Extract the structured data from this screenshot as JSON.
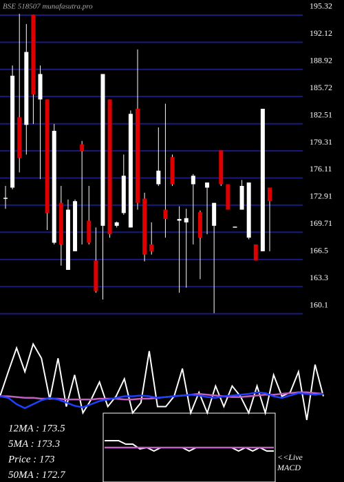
{
  "chart_data": [
    {
      "type": "candlestick",
      "title": "BSE 518507 munafasutra.pro",
      "up_color": "#ffffff",
      "down_color": "#dd0000",
      "grid": true,
      "grid_color": "#1a1a80",
      "ylim": [
        158.77,
        196.13
      ],
      "yticks": [
        195.32,
        192.12,
        188.92,
        185.72,
        182.51,
        179.31,
        176.11,
        172.91,
        169.71,
        166.5,
        163.3,
        160.1
      ],
      "open": [
        172.75,
        174.0,
        182.3,
        181.4,
        194.4,
        184.4,
        184.4,
        167.5,
        172.2,
        164.3,
        166.5,
        179.1,
        170.1,
        165.4,
        169.5,
        184.4,
        169.5,
        171.0,
        169.3,
        183.3,
        172.7,
        167.3,
        174.4,
        171.4,
        177.6,
        170.1,
        169.9,
        174.4,
        171.1,
        174.0,
        169.5,
        178.4,
        174.4,
        169.3,
        171.4,
        168.1,
        167.3,
        166.5,
        174.0
      ],
      "high": [
        174.2,
        188.4,
        194.5,
        193.3,
        194.4,
        188.4,
        184.4,
        181.5,
        174.2,
        172.6,
        172.6,
        179.5,
        174.2,
        169.3,
        187.4,
        184.4,
        170.0,
        177.9,
        183.1,
        190.3,
        173.4,
        169.9,
        181.1,
        183.9,
        177.9,
        171.8,
        171.5,
        175.6,
        171.3,
        174.6,
        172.2,
        178.4,
        174.4,
        169.3,
        174.9,
        174.6,
        167.3,
        183.3,
        174.0
      ],
      "low": [
        171.5,
        173.8,
        175.8,
        177.9,
        181.5,
        175.0,
        169.0,
        167.3,
        164.8,
        164.3,
        166.5,
        167.3,
        167.3,
        161.6,
        160.8,
        168.1,
        169.3,
        170.8,
        169.3,
        171.4,
        165.3,
        166.1,
        174.2,
        168.1,
        174.2,
        161.6,
        162.2,
        167.3,
        163.2,
        168.5,
        159.2,
        174.2,
        171.4,
        169.3,
        171.4,
        167.9,
        165.4,
        166.5,
        166.5
      ],
      "close": [
        172.8,
        187.2,
        177.5,
        190.0,
        185.0,
        187.4,
        171.0,
        180.7,
        167.3,
        171.4,
        172.4,
        178.3,
        167.5,
        161.8,
        187.4,
        168.5,
        169.9,
        175.4,
        182.7,
        172.2,
        166.1,
        166.5,
        176.0,
        170.3,
        174.4,
        170.3,
        170.4,
        175.4,
        168.1,
        174.6,
        172.2,
        174.4,
        171.4,
        169.4,
        174.2,
        174.6,
        165.4,
        183.3,
        172.4
      ]
    },
    {
      "type": "line",
      "ylim": [
        0,
        100
      ],
      "series": [
        {
          "color": "#ffffff",
          "values": [
            30,
            61,
            91,
            61,
            96,
            78,
            26,
            78,
            17,
            57,
            9,
            26,
            48,
            17,
            30,
            52,
            9,
            22,
            87,
            17,
            17,
            30,
            65,
            9,
            35,
            9,
            43,
            17,
            43,
            30,
            9,
            43,
            9,
            57,
            30,
            35,
            61,
            0,
            70,
            30
          ]
        },
        {
          "color": "#c060c0",
          "values": [
            30,
            30,
            29,
            28,
            28,
            27,
            27,
            27,
            26,
            26,
            26,
            26,
            27,
            27,
            27,
            26,
            26,
            27,
            27,
            28,
            29,
            30,
            31,
            32,
            33,
            32,
            31,
            30,
            29,
            29,
            30,
            31,
            32,
            32,
            33,
            34,
            35,
            35,
            34,
            33
          ]
        },
        {
          "color": "#2040ff",
          "values": [
            30,
            28,
            20,
            15,
            20,
            25,
            28,
            26,
            22,
            18,
            16,
            20,
            24,
            26,
            28,
            30,
            30,
            31,
            30,
            28,
            29,
            30,
            31,
            32,
            31,
            29,
            28,
            30,
            31,
            32,
            33,
            35,
            34,
            30,
            28,
            31,
            34,
            33,
            32,
            33
          ]
        }
      ],
      "annotations": [
        "12MA : 173.5",
        "5MA : 173.3",
        "Price  : 173",
        "50MA : 172.7"
      ]
    },
    {
      "type": "line",
      "ylim": [
        0,
        100
      ],
      "title": "MACD",
      "note": "<<Live",
      "series": [
        {
          "color": "#ffffff",
          "values": [
            60,
            60,
            60,
            55,
            55,
            48,
            50,
            45,
            50,
            50,
            50,
            50,
            45,
            50,
            50,
            50,
            50,
            50,
            50,
            45,
            50,
            45,
            50,
            45,
            45
          ]
        },
        {
          "color": "#c060c0",
          "values": [
            50,
            50,
            50,
            50,
            50,
            50,
            50,
            50,
            50,
            50,
            50,
            50,
            50,
            50,
            50,
            50,
            50,
            50,
            50,
            50,
            50,
            50,
            50,
            50,
            50
          ]
        }
      ]
    }
  ]
}
